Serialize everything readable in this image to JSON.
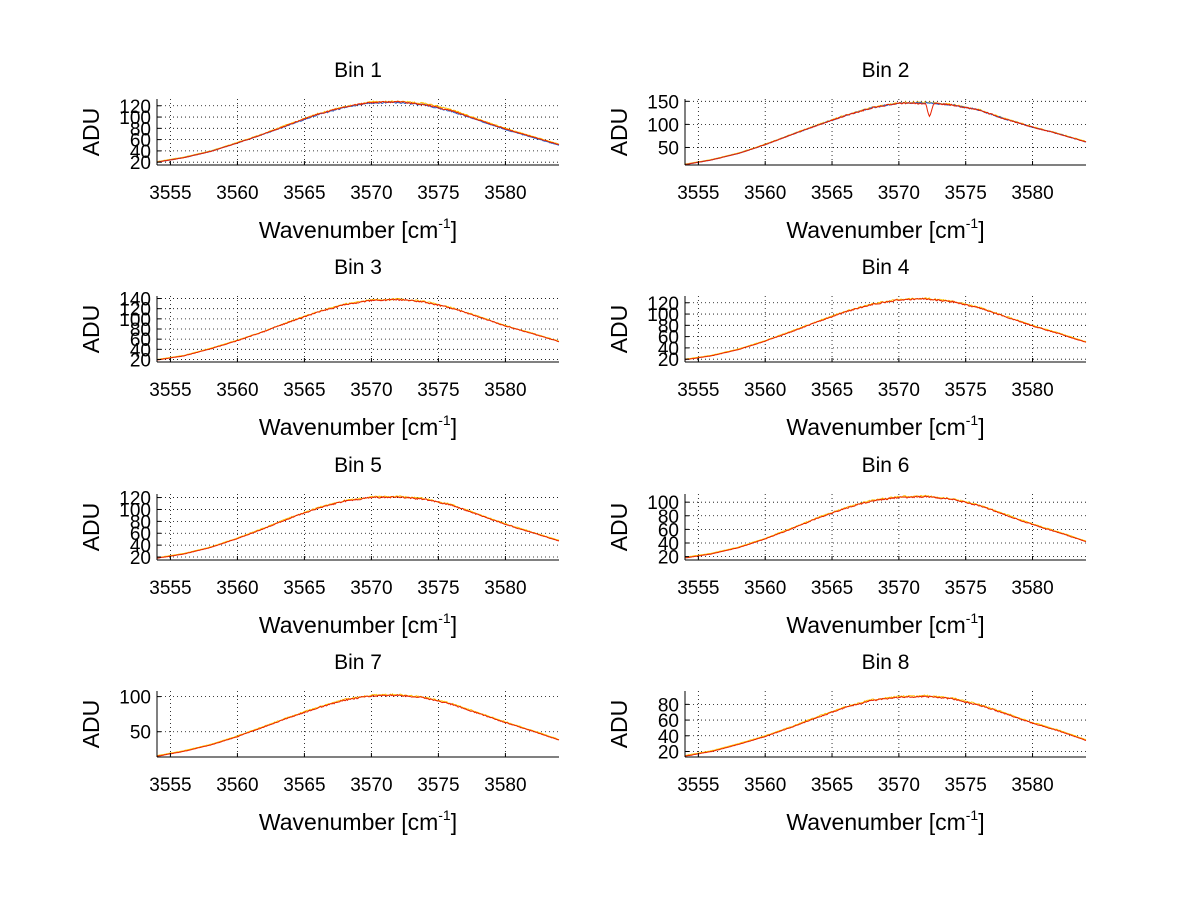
{
  "figure": {
    "background": "#ffffff",
    "axis_color": "#000000",
    "grid": {
      "on": true,
      "style": "dotted"
    }
  },
  "chart_data": [
    {
      "type": "line",
      "title": "Bin 1",
      "xlabel": "Wavenumber [cm",
      "xlabel_sup": "-1",
      "xlabel_close": "]",
      "ylabel": "ADU",
      "xlim": [
        3554,
        3584
      ],
      "ylim": [
        15,
        132
      ],
      "xticks": [
        3555,
        3560,
        3565,
        3570,
        3575,
        3580
      ],
      "xtick_labels": [
        "3555",
        "3560",
        "3565",
        "3570",
        "3575",
        "3580"
      ],
      "yticks": [
        20,
        40,
        60,
        80,
        100,
        120
      ],
      "ytick_labels": [
        "20",
        "40",
        "60",
        "80",
        "100",
        "120"
      ],
      "series": [
        {
          "color": "#ffc000",
          "x": [
            3554,
            3556,
            3558,
            3560,
            3562,
            3564,
            3566,
            3568,
            3570,
            3572,
            3574,
            3576,
            3578,
            3580,
            3582,
            3584
          ],
          "y": [
            21,
            29,
            40,
            55,
            71,
            89,
            106,
            118,
            127,
            128,
            124,
            113,
            96,
            80,
            66,
            52
          ]
        },
        {
          "color": "#2060d0",
          "x": [
            3554,
            3556,
            3558,
            3560,
            3562,
            3564,
            3566,
            3568,
            3570,
            3572,
            3574,
            3576,
            3578,
            3580,
            3582,
            3584
          ],
          "y": [
            20,
            28,
            39,
            54,
            70,
            87,
            104,
            117,
            125,
            126,
            121,
            110,
            94,
            78,
            64,
            50
          ]
        },
        {
          "color": "#e82000",
          "x": [
            3554,
            3556,
            3558,
            3560,
            3562,
            3564,
            3566,
            3568,
            3570,
            3572,
            3574,
            3576,
            3578,
            3580,
            3582,
            3584
          ],
          "y": [
            20,
            28,
            39,
            54,
            70,
            88,
            105,
            118,
            126,
            127,
            122,
            111,
            95,
            79,
            65,
            51
          ]
        }
      ]
    },
    {
      "type": "line",
      "title": "Bin 2",
      "xlabel": "Wavenumber [cm",
      "xlabel_sup": "-1",
      "xlabel_close": "]",
      "ylabel": "ADU",
      "xlim": [
        3554,
        3584
      ],
      "ylim": [
        12,
        155
      ],
      "xticks": [
        3555,
        3560,
        3565,
        3570,
        3575,
        3580
      ],
      "xtick_labels": [
        "3555",
        "3560",
        "3565",
        "3570",
        "3575",
        "3580"
      ],
      "yticks": [
        50,
        100,
        150
      ],
      "ytick_labels": [
        "50",
        "100",
        "150"
      ],
      "series": [
        {
          "color": "#ffc000",
          "x": [
            3554,
            3556,
            3558,
            3560,
            3562,
            3564,
            3566,
            3568,
            3570,
            3572,
            3574,
            3576,
            3578,
            3580,
            3582,
            3584
          ],
          "y": [
            14,
            24,
            38,
            57,
            79,
            100,
            120,
            137,
            147,
            148,
            143,
            132,
            112,
            95,
            80,
            63
          ]
        },
        {
          "color": "#2060d0",
          "x": [
            3554,
            3556,
            3558,
            3560,
            3562,
            3564,
            3566,
            3568,
            3570,
            3572,
            3574,
            3576,
            3578,
            3580,
            3582,
            3584
          ],
          "y": [
            13,
            23,
            37,
            56,
            78,
            99,
            119,
            136,
            146,
            147,
            142,
            131,
            111,
            94,
            79,
            62
          ]
        },
        {
          "color": "#e82000",
          "x": [
            3554,
            3556,
            3558,
            3560,
            3562,
            3564,
            3566,
            3568,
            3570,
            3572,
            3572.3,
            3572.6,
            3574,
            3576,
            3578,
            3580,
            3582,
            3584
          ],
          "y": [
            13,
            23,
            37,
            56,
            78,
            99,
            119,
            136,
            146,
            145,
            115,
            146,
            142,
            131,
            111,
            94,
            79,
            62
          ]
        }
      ]
    },
    {
      "type": "line",
      "title": "Bin 3",
      "xlabel": "Wavenumber [cm",
      "xlabel_sup": "-1",
      "xlabel_close": "]",
      "ylabel": "ADU",
      "xlim": [
        3554,
        3584
      ],
      "ylim": [
        15,
        145
      ],
      "xticks": [
        3555,
        3560,
        3565,
        3570,
        3575,
        3580
      ],
      "xtick_labels": [
        "3555",
        "3560",
        "3565",
        "3570",
        "3575",
        "3580"
      ],
      "yticks": [
        20,
        40,
        60,
        80,
        100,
        120,
        140
      ],
      "ytick_labels": [
        "20",
        "40",
        "60",
        "80",
        "100",
        "120",
        "140"
      ],
      "series": [
        {
          "color": "#ffc000",
          "x": [
            3554,
            3556,
            3558,
            3560,
            3562,
            3564,
            3566,
            3568,
            3570,
            3572,
            3574,
            3576,
            3578,
            3580,
            3582,
            3584
          ],
          "y": [
            20,
            28,
            42,
            58,
            76,
            96,
            114,
            129,
            137,
            139,
            134,
            122,
            105,
            87,
            72,
            56
          ]
        },
        {
          "color": "#e82000",
          "x": [
            3554,
            3556,
            3558,
            3560,
            3562,
            3564,
            3566,
            3568,
            3570,
            3572,
            3574,
            3576,
            3578,
            3580,
            3582,
            3584
          ],
          "y": [
            19,
            27,
            41,
            57,
            75,
            95,
            113,
            128,
            136,
            138,
            133,
            121,
            104,
            86,
            71,
            55
          ]
        }
      ]
    },
    {
      "type": "line",
      "title": "Bin 4",
      "xlabel": "Wavenumber [cm",
      "xlabel_sup": "-1",
      "xlabel_close": "]",
      "ylabel": "ADU",
      "xlim": [
        3554,
        3584
      ],
      "ylim": [
        15,
        132
      ],
      "xticks": [
        3555,
        3560,
        3565,
        3570,
        3575,
        3580
      ],
      "xtick_labels": [
        "3555",
        "3560",
        "3565",
        "3570",
        "3575",
        "3580"
      ],
      "yticks": [
        20,
        40,
        60,
        80,
        100,
        120
      ],
      "ytick_labels": [
        "20",
        "40",
        "60",
        "80",
        "100",
        "120"
      ],
      "series": [
        {
          "color": "#ffc000",
          "x": [
            3554,
            3556,
            3558,
            3560,
            3562,
            3564,
            3566,
            3568,
            3570,
            3572,
            3574,
            3576,
            3578,
            3580,
            3582,
            3584
          ],
          "y": [
            20,
            27,
            38,
            53,
            70,
            88,
            105,
            118,
            126,
            128,
            123,
            112,
            96,
            80,
            66,
            51
          ]
        },
        {
          "color": "#e82000",
          "x": [
            3554,
            3556,
            3558,
            3560,
            3562,
            3564,
            3566,
            3568,
            3570,
            3572,
            3574,
            3576,
            3578,
            3580,
            3582,
            3584
          ],
          "y": [
            19,
            26,
            37,
            52,
            69,
            87,
            104,
            117,
            125,
            127,
            122,
            111,
            95,
            79,
            65,
            50
          ]
        }
      ]
    },
    {
      "type": "line",
      "title": "Bin 5",
      "xlabel": "Wavenumber [cm",
      "xlabel_sup": "-1",
      "xlabel_close": "]",
      "ylabel": "ADU",
      "xlim": [
        3554,
        3584
      ],
      "ylim": [
        15,
        126
      ],
      "xticks": [
        3555,
        3560,
        3565,
        3570,
        3575,
        3580
      ],
      "xtick_labels": [
        "3555",
        "3560",
        "3565",
        "3570",
        "3575",
        "3580"
      ],
      "yticks": [
        20,
        40,
        60,
        80,
        100,
        120
      ],
      "ytick_labels": [
        "20",
        "40",
        "60",
        "80",
        "100",
        "120"
      ],
      "series": [
        {
          "color": "#ffc000",
          "x": [
            3554,
            3556,
            3558,
            3560,
            3562,
            3564,
            3566,
            3568,
            3570,
            3572,
            3574,
            3576,
            3578,
            3580,
            3582,
            3584
          ],
          "y": [
            19,
            26,
            37,
            52,
            69,
            87,
            103,
            115,
            121,
            122,
            118,
            108,
            92,
            76,
            62,
            48
          ]
        },
        {
          "color": "#e82000",
          "x": [
            3554,
            3556,
            3558,
            3560,
            3562,
            3564,
            3566,
            3568,
            3570,
            3572,
            3574,
            3576,
            3578,
            3580,
            3582,
            3584
          ],
          "y": [
            18,
            25,
            36,
            51,
            68,
            86,
            102,
            114,
            120,
            121,
            117,
            107,
            91,
            75,
            61,
            47
          ]
        }
      ]
    },
    {
      "type": "line",
      "title": "Bin 6",
      "xlabel": "Wavenumber [cm",
      "xlabel_sup": "-1",
      "xlabel_close": "]",
      "ylabel": "ADU",
      "xlim": [
        3554,
        3584
      ],
      "ylim": [
        15,
        112
      ],
      "xticks": [
        3555,
        3560,
        3565,
        3570,
        3575,
        3580
      ],
      "xtick_labels": [
        "3555",
        "3560",
        "3565",
        "3570",
        "3575",
        "3580"
      ],
      "yticks": [
        20,
        40,
        60,
        80,
        100
      ],
      "ytick_labels": [
        "20",
        "40",
        "60",
        "80",
        "100"
      ],
      "series": [
        {
          "color": "#ffc000",
          "x": [
            3554,
            3556,
            3558,
            3560,
            3562,
            3564,
            3566,
            3568,
            3570,
            3572,
            3574,
            3576,
            3578,
            3580,
            3582,
            3584
          ],
          "y": [
            19,
            25,
            34,
            47,
            62,
            78,
            92,
            103,
            108,
            109,
            105,
            96,
            82,
            68,
            56,
            43
          ]
        },
        {
          "color": "#e82000",
          "x": [
            3554,
            3556,
            3558,
            3560,
            3562,
            3564,
            3566,
            3568,
            3570,
            3572,
            3574,
            3576,
            3578,
            3580,
            3582,
            3584
          ],
          "y": [
            18,
            24,
            33,
            46,
            61,
            77,
            91,
            102,
            107,
            108,
            104,
            95,
            81,
            67,
            55,
            42
          ]
        }
      ]
    },
    {
      "type": "line",
      "title": "Bin 7",
      "xlabel": "Wavenumber [cm",
      "xlabel_sup": "-1",
      "xlabel_close": "]",
      "ylabel": "ADU",
      "xlim": [
        3554,
        3584
      ],
      "ylim": [
        14,
        108
      ],
      "xticks": [
        3555,
        3560,
        3565,
        3570,
        3575,
        3580
      ],
      "xtick_labels": [
        "3555",
        "3560",
        "3565",
        "3570",
        "3575",
        "3580"
      ],
      "yticks": [
        50,
        100
      ],
      "ytick_labels": [
        "50",
        "100"
      ],
      "series": [
        {
          "color": "#ffc000",
          "x": [
            3554,
            3556,
            3558,
            3560,
            3562,
            3564,
            3566,
            3568,
            3570,
            3572,
            3574,
            3576,
            3578,
            3580,
            3582,
            3584
          ],
          "y": [
            16,
            23,
            32,
            44,
            58,
            72,
            85,
            96,
            102,
            103,
            99,
            90,
            77,
            64,
            52,
            39
          ]
        },
        {
          "color": "#e82000",
          "x": [
            3554,
            3556,
            3558,
            3560,
            3562,
            3564,
            3566,
            3568,
            3570,
            3572,
            3574,
            3576,
            3578,
            3580,
            3582,
            3584
          ],
          "y": [
            15,
            22,
            31,
            43,
            57,
            71,
            84,
            95,
            101,
            102,
            98,
            89,
            76,
            63,
            51,
            38
          ]
        }
      ]
    },
    {
      "type": "line",
      "title": "Bin 8",
      "xlabel": "Wavenumber [cm",
      "xlabel_sup": "-1",
      "xlabel_close": "]",
      "ylabel": "ADU",
      "xlim": [
        3554,
        3584
      ],
      "ylim": [
        13,
        97
      ],
      "xticks": [
        3555,
        3560,
        3565,
        3570,
        3575,
        3580
      ],
      "xtick_labels": [
        "3555",
        "3560",
        "3565",
        "3570",
        "3575",
        "3580"
      ],
      "yticks": [
        20,
        40,
        60,
        80
      ],
      "ytick_labels": [
        "20",
        "40",
        "60",
        "80"
      ],
      "series": [
        {
          "color": "#ffc000",
          "x": [
            3554,
            3556,
            3558,
            3560,
            3562,
            3564,
            3566,
            3568,
            3570,
            3572,
            3574,
            3576,
            3578,
            3580,
            3582,
            3584
          ],
          "y": [
            15,
            21,
            30,
            40,
            52,
            65,
            77,
            86,
            90,
            91,
            88,
            80,
            69,
            57,
            47,
            35
          ]
        },
        {
          "color": "#e82000",
          "x": [
            3554,
            3556,
            3558,
            3560,
            3562,
            3564,
            3566,
            3568,
            3570,
            3572,
            3574,
            3576,
            3578,
            3580,
            3582,
            3584
          ],
          "y": [
            14,
            20,
            29,
            39,
            51,
            64,
            76,
            85,
            89,
            90,
            87,
            79,
            68,
            56,
            46,
            34
          ]
        }
      ]
    }
  ]
}
